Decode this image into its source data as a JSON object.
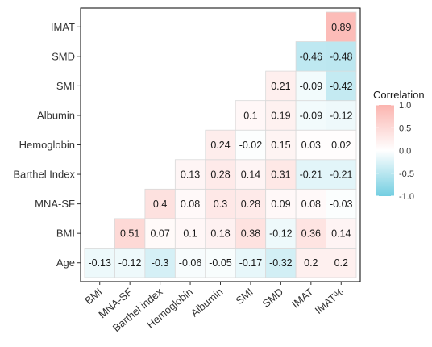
{
  "chart_data": {
    "type": "heatmap",
    "title": "",
    "xlabel": "",
    "ylabel": "",
    "x_labels": [
      "BMI",
      "MNA-SF",
      "Barthel index",
      "Hemoglobin",
      "Albumin",
      "SMI",
      "SMD",
      "IMAT",
      "IMAT%"
    ],
    "y_labels": [
      "Age",
      "BMI",
      "MNA-SF",
      "Barthel Index",
      "Hemoglobin",
      "Albumin",
      "SMI",
      "SMD",
      "IMAT"
    ],
    "values": [
      [
        -0.13,
        -0.12,
        -0.3,
        -0.06,
        -0.05,
        -0.17,
        -0.32,
        0.2,
        0.2
      ],
      [
        null,
        0.51,
        0.07,
        0.1,
        0.18,
        0.38,
        -0.12,
        0.36,
        0.14
      ],
      [
        null,
        null,
        0.4,
        0.08,
        0.3,
        0.28,
        0.09,
        0.08,
        -0.03
      ],
      [
        null,
        null,
        null,
        0.13,
        0.28,
        0.14,
        0.31,
        -0.21,
        -0.21
      ],
      [
        null,
        null,
        null,
        null,
        0.24,
        -0.02,
        0.15,
        0.03,
        0.02
      ],
      [
        null,
        null,
        null,
        null,
        null,
        0.1,
        0.19,
        -0.09,
        -0.12
      ],
      [
        null,
        null,
        null,
        null,
        null,
        null,
        0.21,
        -0.09,
        -0.42
      ],
      [
        null,
        null,
        null,
        null,
        null,
        null,
        null,
        -0.46,
        -0.48
      ],
      [
        null,
        null,
        null,
        null,
        null,
        null,
        null,
        null,
        0.89
      ]
    ],
    "value_labels": [
      [
        "-0.13",
        "-0.12",
        "-0.3",
        "-0.06",
        "-0.05",
        "-0.17",
        "-0.32",
        "0.2",
        "0.2"
      ],
      [
        "",
        "0.51",
        "0.07",
        "0.1",
        "0.18",
        "0.38",
        "-0.12",
        "0.36",
        "0.14"
      ],
      [
        "",
        "",
        "0.4",
        "0.08",
        "0.3",
        "0.28",
        "0.09",
        "0.08",
        "-0.03"
      ],
      [
        "",
        "",
        "",
        "0.13",
        "0.28",
        "0.14",
        "0.31",
        "-0.21",
        "-0.21"
      ],
      [
        "",
        "",
        "",
        "",
        "0.24",
        "-0.02",
        "0.15",
        "0.03",
        "0.02"
      ],
      [
        "",
        "",
        "",
        "",
        "",
        "0.1",
        "0.19",
        "-0.09",
        "-0.12"
      ],
      [
        "",
        "",
        "",
        "",
        "",
        "",
        "0.21",
        "-0.09",
        "-0.42"
      ],
      [
        "",
        "",
        "",
        "",
        "",
        "",
        "",
        "-0.46",
        "-0.48"
      ],
      [
        "",
        "",
        "",
        "",
        "",
        "",
        "",
        "",
        "0.89"
      ]
    ],
    "legend": {
      "title": "Correlation",
      "ticks": [
        "1.0",
        "0.5",
        "0.0",
        "-0.5",
        "-1.0"
      ],
      "tick_values": [
        1.0,
        0.5,
        0.0,
        -0.5,
        -1.0
      ],
      "position": "right"
    },
    "value_range": [
      -1,
      1
    ],
    "colors": {
      "high": "#F8766D",
      "mid": "#FFFFFF",
      "low": "#00A5C8",
      "panel_border": "#000000",
      "cell_border": "#d9d9d9"
    },
    "grid": false
  }
}
